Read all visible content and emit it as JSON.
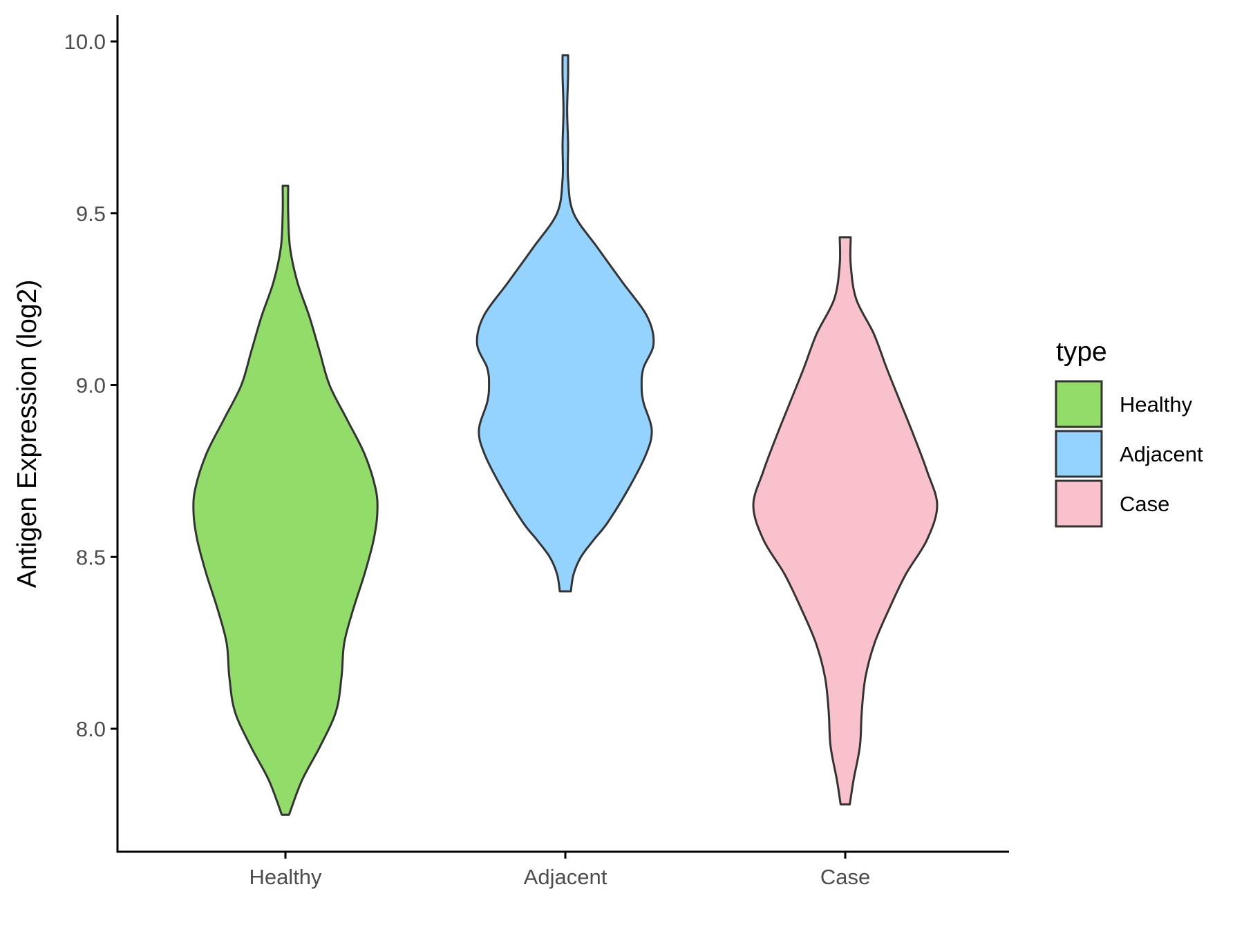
{
  "chart_data": {
    "type": "violin",
    "xlabel": "",
    "ylabel": "Antigen Expression (log2)",
    "categories": [
      "Healthy",
      "Adjacent",
      "Case"
    ],
    "ylim": [
      7.65,
      10.08
    ],
    "yticks": [
      8.0,
      8.5,
      9.0,
      9.5,
      10.0
    ],
    "ytick_labels": [
      "8.0",
      "8.5",
      "9.0",
      "9.5",
      "10.0"
    ],
    "grid": false,
    "legend": {
      "title": "type",
      "position": "right",
      "entries": [
        "Healthy",
        "Adjacent",
        "Case"
      ]
    },
    "series": [
      {
        "name": "Healthy",
        "color": "#92dc6a",
        "y_min": 7.75,
        "y_max": 9.58,
        "density_profile": [
          [
            7.75,
            0.04
          ],
          [
            7.85,
            0.18
          ],
          [
            7.95,
            0.38
          ],
          [
            8.05,
            0.55
          ],
          [
            8.15,
            0.61
          ],
          [
            8.25,
            0.64
          ],
          [
            8.35,
            0.74
          ],
          [
            8.45,
            0.86
          ],
          [
            8.55,
            0.96
          ],
          [
            8.63,
            1.0
          ],
          [
            8.7,
            0.98
          ],
          [
            8.8,
            0.86
          ],
          [
            8.9,
            0.67
          ],
          [
            9.0,
            0.48
          ],
          [
            9.1,
            0.37
          ],
          [
            9.2,
            0.26
          ],
          [
            9.3,
            0.13
          ],
          [
            9.4,
            0.05
          ],
          [
            9.5,
            0.03
          ],
          [
            9.58,
            0.03
          ]
        ]
      },
      {
        "name": "Adjacent",
        "color": "#93d3fe",
        "y_min": 8.4,
        "y_max": 9.96,
        "density_profile": [
          [
            8.4,
            0.06
          ],
          [
            8.45,
            0.09
          ],
          [
            8.5,
            0.17
          ],
          [
            8.55,
            0.31
          ],
          [
            8.6,
            0.46
          ],
          [
            8.7,
            0.69
          ],
          [
            8.8,
            0.88
          ],
          [
            8.87,
            0.94
          ],
          [
            8.95,
            0.85
          ],
          [
            9.0,
            0.83
          ],
          [
            9.05,
            0.85
          ],
          [
            9.12,
            0.96
          ],
          [
            9.2,
            0.89
          ],
          [
            9.3,
            0.62
          ],
          [
            9.4,
            0.35
          ],
          [
            9.5,
            0.09
          ],
          [
            9.6,
            0.03
          ],
          [
            9.7,
            0.03
          ],
          [
            9.8,
            0.02
          ],
          [
            9.9,
            0.03
          ],
          [
            9.96,
            0.03
          ]
        ]
      },
      {
        "name": "Case",
        "color": "#f8c1cc",
        "y_min": 7.78,
        "y_max": 9.43,
        "density_profile": [
          [
            7.78,
            0.05
          ],
          [
            7.85,
            0.09
          ],
          [
            7.95,
            0.16
          ],
          [
            8.05,
            0.18
          ],
          [
            8.15,
            0.22
          ],
          [
            8.25,
            0.32
          ],
          [
            8.35,
            0.48
          ],
          [
            8.45,
            0.66
          ],
          [
            8.55,
            0.89
          ],
          [
            8.65,
            1.0
          ],
          [
            8.75,
            0.89
          ],
          [
            8.85,
            0.75
          ],
          [
            8.95,
            0.6
          ],
          [
            9.05,
            0.45
          ],
          [
            9.15,
            0.31
          ],
          [
            9.25,
            0.12
          ],
          [
            9.35,
            0.06
          ],
          [
            9.43,
            0.06
          ]
        ]
      }
    ]
  }
}
